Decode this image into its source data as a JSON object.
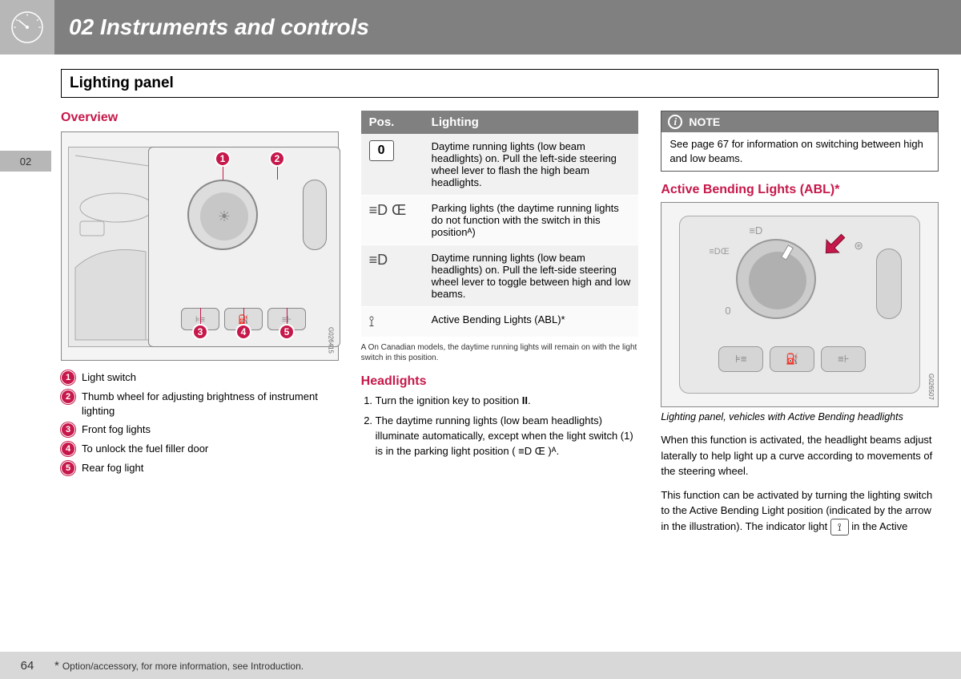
{
  "colors": {
    "accent": "#c6184a",
    "header_gray": "#808080",
    "light_gray": "#b7b7b7",
    "footer_gray": "#d8d8d8"
  },
  "header": {
    "chapter": "02 Instruments and controls"
  },
  "side_tab": "02",
  "section_title": "Lighting panel",
  "overview": {
    "heading": "Overview",
    "image_code": "G026415",
    "legend": [
      {
        "n": "1",
        "text": "Light switch"
      },
      {
        "n": "2",
        "text": "Thumb wheel for adjusting brightness of instrument lighting"
      },
      {
        "n": "3",
        "text": "Front fog lights"
      },
      {
        "n": "4",
        "text": "To unlock the fuel filler door"
      },
      {
        "n": "5",
        "text": "Rear fog light"
      }
    ]
  },
  "table": {
    "headers": {
      "pos": "Pos.",
      "lighting": "Lighting"
    },
    "rows": [
      {
        "pos_label": "0",
        "pos_type": "box",
        "desc": "Daytime running lights (low beam headlights) on. Pull the left-side steering wheel lever to flash the high beam headlights."
      },
      {
        "pos_label": "≡D Œ",
        "pos_type": "sym",
        "desc": "Parking lights (the daytime running lights do not function with the switch in this positionᴬ)"
      },
      {
        "pos_label": "≡D",
        "pos_type": "sym",
        "desc": "Daytime running lights (low beam headlights) on. Pull the left-side steering wheel lever to toggle between high and low beams."
      },
      {
        "pos_label": "⟟",
        "pos_type": "sym",
        "desc": "Active Bending Lights (ABL)*"
      }
    ],
    "footnote": "A  On Canadian models, the daytime running lights will remain on with the light switch in this position."
  },
  "headlights": {
    "heading": "Headlights",
    "items": [
      "Turn the ignition key to position II.",
      "The daytime running lights (low beam headlights) illuminate automatically, except when the light switch (1) is in the parking light position ( ≡D Œ )ᴬ."
    ]
  },
  "note": {
    "label": "NOTE",
    "text": "See page 67 for information on switching between high and low beams."
  },
  "abl": {
    "heading": "Active Bending Lights (ABL)*",
    "image_code": "G026507",
    "caption": "Lighting panel, vehicles with Active Bending headlights",
    "para1": "When this function is activated, the headlight beams adjust laterally to help light up a curve according to movements of the steering wheel.",
    "para2_a": "This function can be activated by turning the lighting switch to the Active Bending Light position (indicated by the arrow in the illustration). The indicator light ",
    "para2_b": " in the Active"
  },
  "footer": {
    "page": "64",
    "note": "Option/accessory, for more information, see Introduction."
  }
}
